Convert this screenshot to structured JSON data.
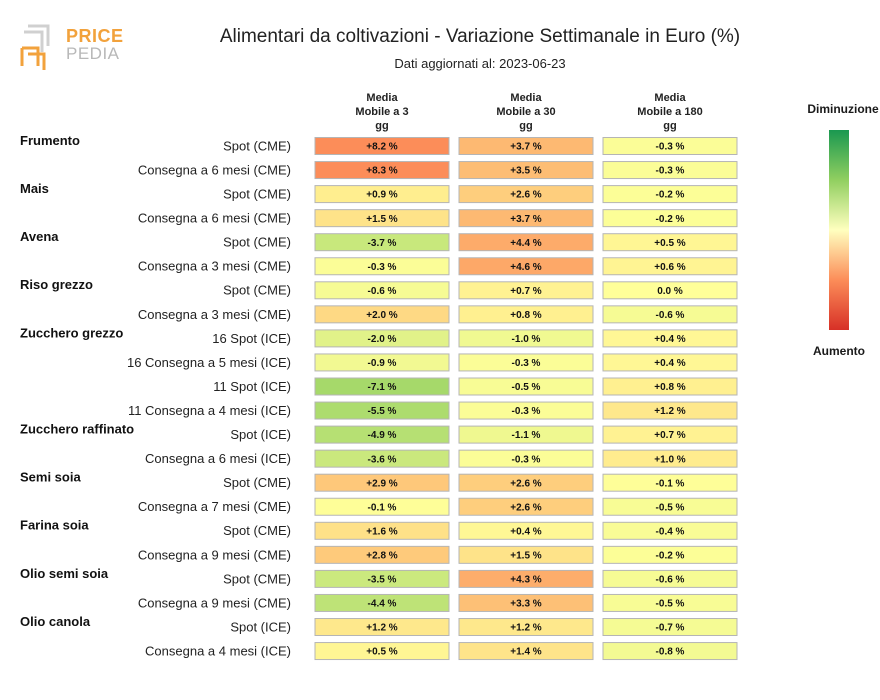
{
  "logo": {
    "word1": "PRICE",
    "word2": "PEDIA"
  },
  "title": "Alimentari da coltivazioni - Variazione Settimanale in Euro (%)",
  "subtitle": "Dati aggiornati al: 2023-06-23",
  "legend": {
    "top": "Diminuzione",
    "bottom": "Aumento"
  },
  "chart_data": {
    "type": "table",
    "columns": [
      [
        "Media",
        "Mobile a 3",
        "gg"
      ],
      [
        "Media",
        "Mobile a 30",
        "gg"
      ],
      [
        "Media",
        "Mobile a 180",
        "gg"
      ]
    ],
    "groups": [
      {
        "name": "Frumento",
        "rows": [
          {
            "label": "Spot (CME)",
            "values": [
              "+8.2 %",
              "+3.7 %",
              "-0.3 %"
            ]
          },
          {
            "label": "Consegna a 6 mesi (CME)",
            "values": [
              "+8.3 %",
              "+3.5 %",
              "-0.3 %"
            ]
          }
        ]
      },
      {
        "name": "Mais",
        "rows": [
          {
            "label": "Spot (CME)",
            "values": [
              "+0.9 %",
              "+2.6 %",
              "-0.2 %"
            ]
          },
          {
            "label": "Consegna a 6 mesi (CME)",
            "values": [
              "+1.5 %",
              "+3.7 %",
              "-0.2 %"
            ]
          }
        ]
      },
      {
        "name": "Avena",
        "rows": [
          {
            "label": "Spot (CME)",
            "values": [
              "-3.7 %",
              "+4.4 %",
              "+0.5 %"
            ]
          },
          {
            "label": "Consegna a 3 mesi (CME)",
            "values": [
              "-0.3 %",
              "+4.6 %",
              "+0.6 %"
            ]
          }
        ]
      },
      {
        "name": "Riso grezzo",
        "rows": [
          {
            "label": "Spot (CME)",
            "values": [
              "-0.6 %",
              "+0.7 %",
              "0.0 %"
            ]
          },
          {
            "label": "Consegna a 3 mesi (CME)",
            "values": [
              "+2.0 %",
              "+0.8 %",
              "-0.6 %"
            ]
          }
        ]
      },
      {
        "name": "Zucchero grezzo",
        "rows": [
          {
            "label": "16 Spot (ICE)",
            "values": [
              "-2.0 %",
              "-1.0 %",
              "+0.4 %"
            ]
          },
          {
            "label": "16 Consegna a 5 mesi (ICE)",
            "values": [
              "-0.9 %",
              "-0.3 %",
              "+0.4 %"
            ]
          },
          {
            "label": "11 Spot (ICE)",
            "values": [
              "-7.1 %",
              "-0.5 %",
              "+0.8 %"
            ]
          },
          {
            "label": "11 Consegna a 4 mesi (ICE)",
            "values": [
              "-5.5 %",
              "-0.3 %",
              "+1.2 %"
            ]
          }
        ]
      },
      {
        "name": "Zucchero raffinato",
        "rows": [
          {
            "label": "Spot (ICE)",
            "values": [
              "-4.9 %",
              "-1.1 %",
              "+0.7 %"
            ]
          },
          {
            "label": "Consegna a 6 mesi (ICE)",
            "values": [
              "-3.6 %",
              "-0.3 %",
              "+1.0 %"
            ]
          }
        ]
      },
      {
        "name": "Semi soia",
        "rows": [
          {
            "label": "Spot (CME)",
            "values": [
              "+2.9 %",
              "+2.6 %",
              "-0.1 %"
            ]
          },
          {
            "label": "Consegna a 7 mesi (CME)",
            "values": [
              "-0.1 %",
              "+2.6 %",
              "-0.5 %"
            ]
          }
        ]
      },
      {
        "name": "Farina soia",
        "rows": [
          {
            "label": "Spot (CME)",
            "values": [
              "+1.6 %",
              "+0.4 %",
              "-0.4 %"
            ]
          },
          {
            "label": "Consegna a 9 mesi (CME)",
            "values": [
              "+2.8 %",
              "+1.5 %",
              "-0.2 %"
            ]
          }
        ]
      },
      {
        "name": "Olio semi soia",
        "rows": [
          {
            "label": "Spot (CME)",
            "values": [
              "-3.5 %",
              "+4.3 %",
              "-0.6 %"
            ]
          },
          {
            "label": "Consegna a 9 mesi (CME)",
            "values": [
              "-4.4 %",
              "+3.3 %",
              "-0.5 %"
            ]
          }
        ]
      },
      {
        "name": "Olio canola",
        "rows": [
          {
            "label": "Spot (ICE)",
            "values": [
              "+1.2 %",
              "+1.2 %",
              "-0.7 %"
            ]
          },
          {
            "label": "Consegna a 4 mesi (ICE)",
            "values": [
              "+0.5 %",
              "+1.4 %",
              "-0.8 %"
            ]
          }
        ]
      }
    ],
    "color_scale": {
      "decrease": "#1a9850",
      "neutral": "#ffffbf",
      "increase": "#d73027"
    }
  }
}
